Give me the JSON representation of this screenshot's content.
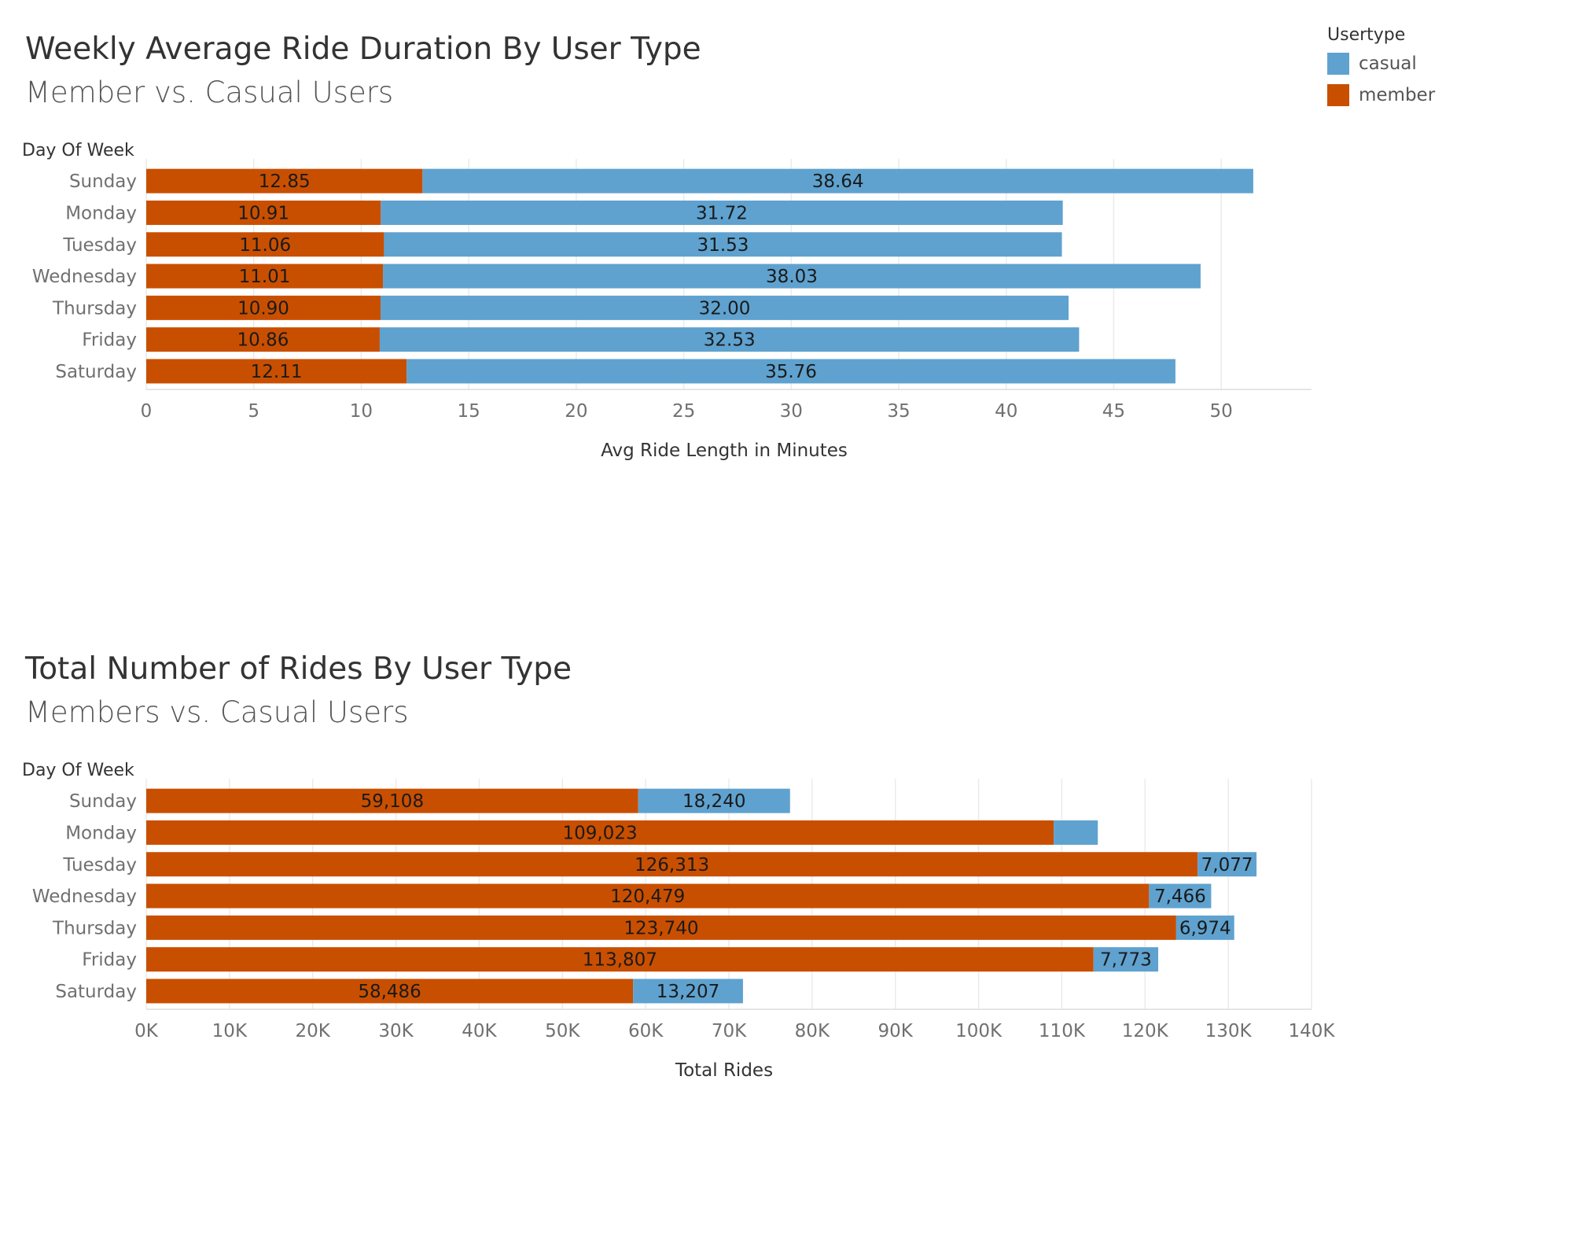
{
  "legend": {
    "title": "Usertype",
    "items": [
      {
        "label": "casual",
        "color": "#5fa2cf"
      },
      {
        "label": "member",
        "color": "#c94f00"
      }
    ]
  },
  "colors": {
    "member": "#c94f00",
    "casual": "#5fa2cf",
    "grid": "#ebebeb",
    "axis_text": "#707070"
  },
  "chart_data": [
    {
      "type": "bar",
      "orientation": "horizontal",
      "stacked": true,
      "title": "Weekly Average Ride Duration By User Type",
      "subtitle": "Member vs.  Casual Users",
      "ylabel": "Day Of Week",
      "xlabel": "Avg Ride Length in Minutes",
      "categories": [
        "Sunday",
        "Monday",
        "Tuesday",
        "Wednesday",
        "Thursday",
        "Friday",
        "Saturday"
      ],
      "series": [
        {
          "name": "member",
          "values": [
            12.85,
            10.91,
            11.06,
            11.01,
            10.9,
            10.86,
            12.11
          ],
          "labels": [
            "12.85",
            "10.91",
            "11.06",
            "11.01",
            "10.90",
            "10.86",
            "12.11"
          ]
        },
        {
          "name": "casual",
          "values": [
            38.64,
            31.72,
            31.53,
            38.03,
            32.0,
            32.53,
            35.76
          ],
          "labels": [
            "38.64",
            "31.72",
            "31.53",
            "38.03",
            "32.00",
            "32.53",
            "35.76"
          ]
        }
      ],
      "xticks": [
        0,
        5,
        10,
        15,
        20,
        25,
        30,
        35,
        40,
        45,
        50
      ],
      "xtick_labels": [
        "0",
        "5",
        "10",
        "15",
        "20",
        "25",
        "30",
        "35",
        "40",
        "45",
        "50"
      ],
      "xlim": [
        0,
        54.2
      ],
      "grid": true
    },
    {
      "type": "bar",
      "orientation": "horizontal",
      "stacked": true,
      "title": "Total Number of Rides By User Type",
      "subtitle": "Members vs. Casual Users",
      "ylabel": "Day Of Week",
      "xlabel": "Total Rides",
      "categories": [
        "Sunday",
        "Monday",
        "Tuesday",
        "Wednesday",
        "Thursday",
        "Friday",
        "Saturday"
      ],
      "series": [
        {
          "name": "member",
          "values": [
            59108,
            109023,
            126313,
            120479,
            123740,
            113807,
            58486
          ],
          "labels": [
            "59,108",
            "109,023",
            "126,313",
            "120,479",
            "123,740",
            "113,807",
            "58,486"
          ]
        },
        {
          "name": "casual",
          "values": [
            18240,
            5300,
            7077,
            7466,
            6974,
            7773,
            13207
          ],
          "labels": [
            "18,240",
            "",
            "7,077",
            "7,466",
            "6,974",
            "7,773",
            "13,207"
          ]
        }
      ],
      "xticks": [
        0,
        10000,
        20000,
        30000,
        40000,
        50000,
        60000,
        70000,
        80000,
        90000,
        100000,
        110000,
        120000,
        130000,
        140000
      ],
      "xtick_labels": [
        "0K",
        "10K",
        "20K",
        "30K",
        "40K",
        "50K",
        "60K",
        "70K",
        "80K",
        "90K",
        "100K",
        "110K",
        "120K",
        "130K",
        "140K"
      ],
      "xlim": [
        0,
        140000
      ],
      "grid": true
    }
  ]
}
